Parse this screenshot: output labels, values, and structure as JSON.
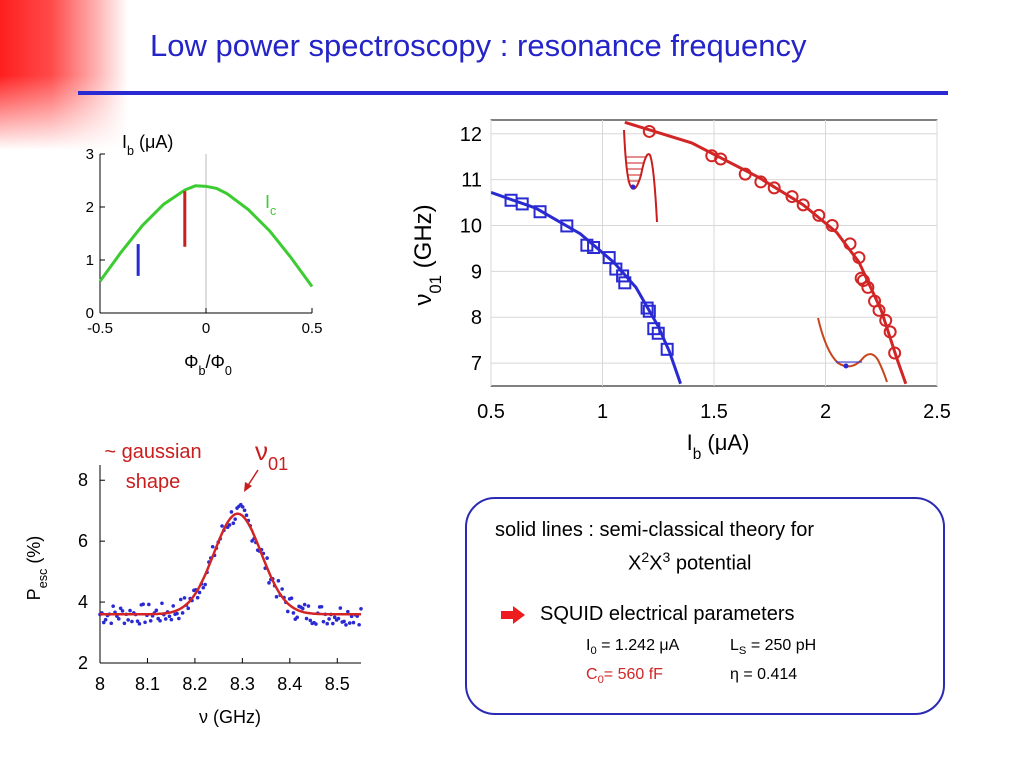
{
  "slide": {
    "title": "Low power spectroscopy : resonance frequency",
    "colors": {
      "title": "#2424c8",
      "accent": "#ff2020",
      "rule": "#2a2ad2"
    }
  },
  "chart_data": [
    {
      "id": "critical-current",
      "type": "line",
      "x": [
        -0.5,
        -0.4,
        -0.3,
        -0.2,
        -0.1,
        -0.05,
        0,
        0.05,
        0.1,
        0.2,
        0.3,
        0.4,
        0.5
      ],
      "y": [
        0.6,
        1.15,
        1.65,
        2.05,
        2.32,
        2.4,
        2.39,
        2.35,
        2.25,
        1.95,
        1.55,
        1.05,
        0.5
      ],
      "series_color": "#3ccc32",
      "series_label": {
        "main": "I",
        "sub": "c"
      },
      "markers": [
        {
          "x": -0.32,
          "y0": 0.7,
          "y1": 1.3,
          "color": "#2a2ad2"
        },
        {
          "x": -0.1,
          "y0": 1.25,
          "y1": 2.3,
          "color": "#c81e1e"
        }
      ],
      "xlim": [
        -0.5,
        0.5
      ],
      "ylim": [
        0,
        3
      ],
      "xticks": [
        "-0.5",
        "0",
        "0.5"
      ],
      "yticks": [
        "0",
        "1",
        "2",
        "3"
      ],
      "xlabel": {
        "a": "Φ",
        "sub_a": "b",
        "sep": "/",
        "b": "Φ",
        "sub_b": "0"
      },
      "ylabel": {
        "main": "I",
        "sub": "b",
        "unit": " (μA)"
      },
      "grid": false
    },
    {
      "id": "resonance-vs-bias",
      "type": "scatter",
      "xlim": [
        0.5,
        2.5
      ],
      "ylim": [
        6.5,
        12.3
      ],
      "xticks": [
        "0.5",
        "1",
        "1.5",
        "2",
        "2.5"
      ],
      "yticks": [
        "7",
        "8",
        "9",
        "10",
        "11",
        "12"
      ],
      "xlabel": {
        "main": "I",
        "sub": "b",
        "unit": " (μA)"
      },
      "ylabel": {
        "main": "ν",
        "sub": "01",
        "unit": " (GHz)"
      },
      "grid": true,
      "series": [
        {
          "color": "#2a2ad2",
          "marker": "square",
          "points": [
            [
              0.59,
              10.55
            ],
            [
              0.64,
              10.47
            ],
            [
              0.72,
              10.3
            ],
            [
              0.84,
              9.99
            ],
            [
              0.93,
              9.57
            ],
            [
              0.96,
              9.52
            ],
            [
              1.03,
              9.3
            ],
            [
              1.06,
              9.05
            ],
            [
              1.09,
              8.9
            ],
            [
              1.1,
              8.75
            ],
            [
              1.2,
              8.2
            ],
            [
              1.21,
              8.13
            ],
            [
              1.23,
              7.75
            ],
            [
              1.25,
              7.65
            ],
            [
              1.29,
              7.3
            ]
          ],
          "curve": [
            [
              0.5,
              10.72
            ],
            [
              0.7,
              10.38
            ],
            [
              0.9,
              9.82
            ],
            [
              1.05,
              9.2
            ],
            [
              1.15,
              8.65
            ],
            [
              1.25,
              7.8
            ],
            [
              1.3,
              7.25
            ],
            [
              1.35,
              6.55
            ]
          ]
        },
        {
          "color": "#d22626",
          "marker": "circle",
          "points": [
            [
              1.21,
              12.05
            ],
            [
              1.49,
              11.52
            ],
            [
              1.53,
              11.45
            ],
            [
              1.64,
              11.12
            ],
            [
              1.71,
              10.95
            ],
            [
              1.77,
              10.82
            ],
            [
              1.85,
              10.63
            ],
            [
              1.9,
              10.45
            ],
            [
              1.97,
              10.22
            ],
            [
              2.03,
              10.0
            ],
            [
              2.11,
              9.6
            ],
            [
              2.15,
              9.3
            ],
            [
              2.16,
              8.85
            ],
            [
              2.17,
              8.8
            ],
            [
              2.19,
              8.65
            ],
            [
              2.22,
              8.35
            ],
            [
              2.24,
              8.15
            ],
            [
              2.27,
              7.93
            ],
            [
              2.29,
              7.68
            ],
            [
              2.31,
              7.22
            ]
          ],
          "curve": [
            [
              1.1,
              12.25
            ],
            [
              1.4,
              11.8
            ],
            [
              1.7,
              11.05
            ],
            [
              1.9,
              10.45
            ],
            [
              2.05,
              9.85
            ],
            [
              2.15,
              9.2
            ],
            [
              2.25,
              8.15
            ],
            [
              2.32,
              7.1
            ],
            [
              2.36,
              6.55
            ]
          ]
        }
      ]
    },
    {
      "id": "escape-probability",
      "type": "scatter",
      "xlim": [
        8.0,
        8.55
      ],
      "ylim": [
        2,
        8.5
      ],
      "xticks": [
        "8",
        "8.1",
        "8.2",
        "8.3",
        "8.4",
        "8.5"
      ],
      "yticks": [
        "2",
        "4",
        "6",
        "8"
      ],
      "xlabel": {
        "main": "ν",
        "unit": " (GHz)"
      },
      "ylabel": {
        "main": "P",
        "sub": "esc",
        "unit": " (%)"
      },
      "grid": false,
      "fit": {
        "baseline": 3.6,
        "amplitude": 3.3,
        "center": 8.29,
        "sigma": 0.05,
        "color": "#d22626"
      },
      "point_color": "#2a2ad2",
      "annotations": {
        "shape_note": [
          "~ gaussian",
          "shape"
        ],
        "peak_label": {
          "main": "ν",
          "sub": "01"
        }
      }
    }
  ],
  "info_box": {
    "theory_line1": "solid lines : semi-classical theory for",
    "theory_line2_a": "X",
    "theory_line2_sup_a": "2",
    "theory_line2_b": "X",
    "theory_line2_sup_b": "3",
    "theory_line2_c": " potential",
    "bullet_icon": "right-arrow-icon",
    "bullet_text": "SQUID electrical parameters",
    "params": {
      "i0": {
        "main": "I",
        "sub": "0",
        "rest": " = 1.242 μA"
      },
      "ls": {
        "main": "L",
        "sub": "S",
        "rest": " = 250 pH"
      },
      "c0": {
        "main": "C",
        "sub": "0",
        "rest": "= 560 fF",
        "color": "#d22626"
      },
      "eta": {
        "text": "η = 0.414"
      }
    }
  }
}
